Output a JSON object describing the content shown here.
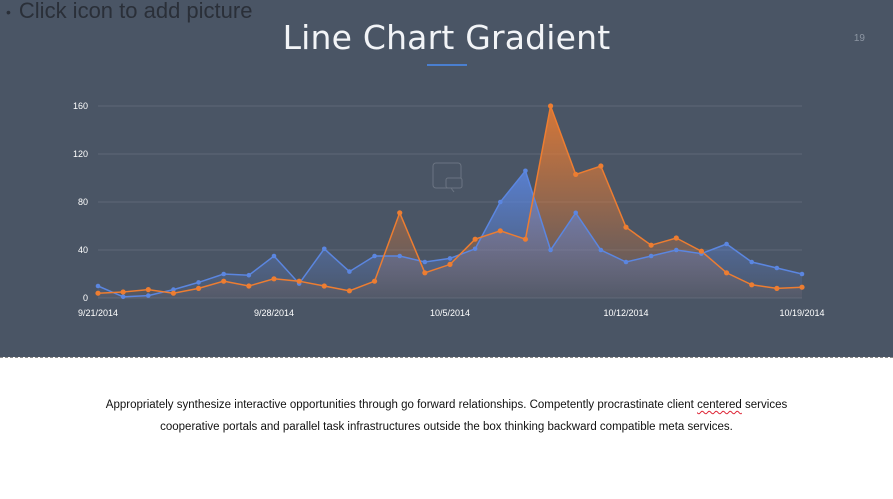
{
  "placeholder": {
    "bullet": "•",
    "text": "Click icon to add picture"
  },
  "slide": {
    "title": "Line Chart Gradient",
    "number": "19"
  },
  "notes": {
    "line1_before": "Appropriately synthesize interactive opportunities through go forward relationships. Competently procrastinate client ",
    "line1_flag": "centered",
    "line1_after": " services",
    "line2": "cooperative portals and parallel task infrastructures outside the box thinking backward compatible meta services."
  },
  "colors": {
    "slide_bg": "#4a5565",
    "accent": "#4a7fd0",
    "series_blue": "#5b86e0",
    "series_orange": "#ed7d31"
  },
  "chart_data": {
    "type": "area",
    "title": "",
    "xlabel": "",
    "ylabel": "",
    "ylim": [
      0,
      160
    ],
    "yticks": [
      0,
      40,
      80,
      120,
      160
    ],
    "xticks": [
      "9/21/2014",
      "9/28/2014",
      "10/5/2014",
      "10/12/2014",
      "10/19/2014"
    ],
    "x": [
      "9/21/2014",
      "9/22/2014",
      "9/23/2014",
      "9/24/2014",
      "9/25/2014",
      "9/26/2014",
      "9/27/2014",
      "9/28/2014",
      "9/29/2014",
      "9/30/2014",
      "10/1/2014",
      "10/2/2014",
      "10/3/2014",
      "10/4/2014",
      "10/5/2014",
      "10/6/2014",
      "10/7/2014",
      "10/8/2014",
      "10/9/2014",
      "10/10/2014",
      "10/11/2014",
      "10/12/2014",
      "10/13/2014",
      "10/14/2014",
      "10/15/2014",
      "10/16/2014",
      "10/17/2014",
      "10/18/2014",
      "10/19/2014"
    ],
    "grid": true,
    "legend": "none",
    "series": [
      {
        "color": "#5b86e0",
        "values": [
          10,
          1,
          2,
          7,
          13,
          20,
          19,
          35,
          12,
          41,
          22,
          35,
          35,
          30,
          33,
          41,
          80,
          106,
          40,
          71,
          40,
          30,
          35,
          40,
          37,
          45,
          30,
          25,
          20
        ]
      },
      {
        "color": "#ed7d31",
        "values": [
          4,
          5,
          7,
          4,
          8,
          14,
          10,
          16,
          14,
          10,
          6,
          14,
          71,
          21,
          28,
          49,
          56,
          49,
          160,
          103,
          110,
          59,
          44,
          50,
          39,
          21,
          11,
          8,
          9
        ]
      }
    ]
  }
}
